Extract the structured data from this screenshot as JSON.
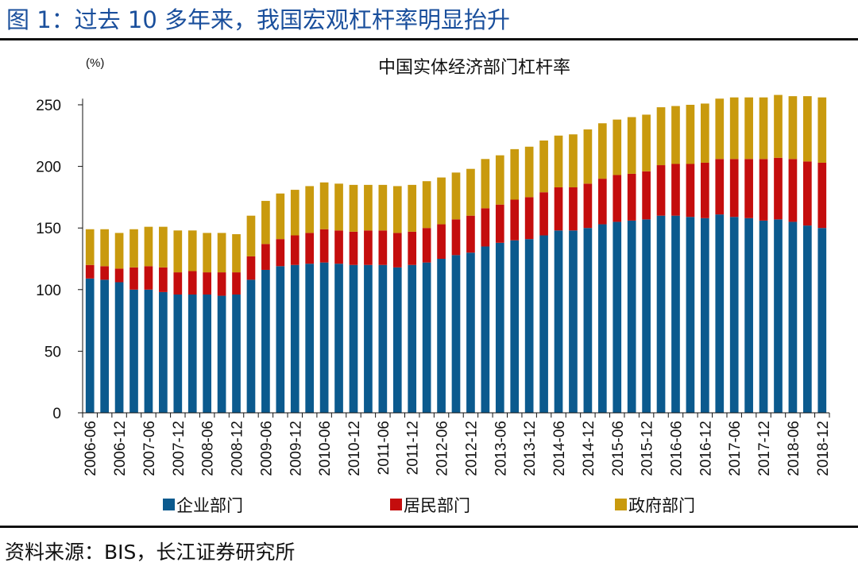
{
  "figure": {
    "title": "图 1：过去 10 多年来，我国宏观杠杆率明显抬升",
    "source": "资料来源：BIS，长江证券研究所"
  },
  "colors": {
    "title": "#1a4f9c",
    "corporate": "#0b5a8e",
    "household": "#c40d0d",
    "government": "#c99a0e"
  },
  "chart_data": {
    "type": "bar",
    "stacked": true,
    "title": "中国实体经济部门杠杆率",
    "ylabel": "(%)",
    "xlabel": "",
    "ylim": [
      0,
      260
    ],
    "yticks": [
      0,
      50,
      100,
      150,
      200,
      250
    ],
    "grid": false,
    "legend_position": "bottom",
    "categories": [
      "2006-06",
      "2006-09",
      "2006-12",
      "2007-03",
      "2007-06",
      "2007-09",
      "2007-12",
      "2008-03",
      "2008-06",
      "2008-09",
      "2008-12",
      "2009-03",
      "2009-06",
      "2009-09",
      "2009-12",
      "2010-03",
      "2010-06",
      "2010-09",
      "2010-12",
      "2011-03",
      "2011-06",
      "2011-09",
      "2011-12",
      "2012-03",
      "2012-06",
      "2012-09",
      "2012-12",
      "2013-03",
      "2013-06",
      "2013-09",
      "2013-12",
      "2014-03",
      "2014-06",
      "2014-09",
      "2014-12",
      "2015-03",
      "2015-06",
      "2015-09",
      "2015-12",
      "2016-03",
      "2016-06",
      "2016-09",
      "2016-12",
      "2017-03",
      "2017-06",
      "2017-09",
      "2017-12",
      "2018-03",
      "2018-06",
      "2018-09",
      "2018-12"
    ],
    "tick_labels": [
      "2006-06",
      "2006-12",
      "2007-06",
      "2007-12",
      "2008-06",
      "2008-12",
      "2009-06",
      "2009-12",
      "2010-06",
      "2010-12",
      "2011-06",
      "2011-12",
      "2012-06",
      "2012-12",
      "2013-06",
      "2013-12",
      "2014-06",
      "2014-12",
      "2015-06",
      "2015-12",
      "2016-06",
      "2016-12",
      "2017-06",
      "2017-12",
      "2018-06",
      "2018-12"
    ],
    "series": [
      {
        "name": "企业部门",
        "color": "#0b5a8e",
        "values": [
          109,
          108,
          106,
          100,
          100,
          98,
          96,
          96,
          96,
          95,
          96,
          108,
          116,
          119,
          120,
          121,
          122,
          121,
          120,
          120,
          120,
          118,
          120,
          122,
          125,
          128,
          130,
          135,
          138,
          140,
          141,
          144,
          148,
          148,
          150,
          153,
          155,
          156,
          157,
          160,
          160,
          159,
          158,
          161,
          159,
          158,
          156,
          157,
          155,
          152,
          150
        ]
      },
      {
        "name": "居民部门",
        "color": "#c40d0d",
        "values": [
          11,
          11,
          11,
          18,
          19,
          20,
          18,
          19,
          18,
          19,
          18,
          19,
          21,
          22,
          24,
          25,
          27,
          27,
          27,
          28,
          28,
          28,
          27,
          28,
          28,
          29,
          30,
          31,
          31,
          33,
          34,
          35,
          35,
          35,
          36,
          37,
          38,
          38,
          39,
          41,
          42,
          43,
          45,
          45,
          47,
          48,
          50,
          50,
          51,
          52,
          53
        ]
      },
      {
        "name": "政府部门",
        "color": "#c99a0e",
        "values": [
          29,
          30,
          29,
          31,
          32,
          33,
          34,
          33,
          32,
          32,
          31,
          33,
          35,
          37,
          37,
          38,
          38,
          38,
          38,
          37,
          37,
          38,
          38,
          38,
          38,
          38,
          38,
          40,
          40,
          41,
          41,
          42,
          42,
          43,
          44,
          45,
          45,
          46,
          46,
          47,
          47,
          48,
          48,
          49,
          50,
          50,
          50,
          51,
          51,
          53,
          53
        ]
      }
    ]
  }
}
